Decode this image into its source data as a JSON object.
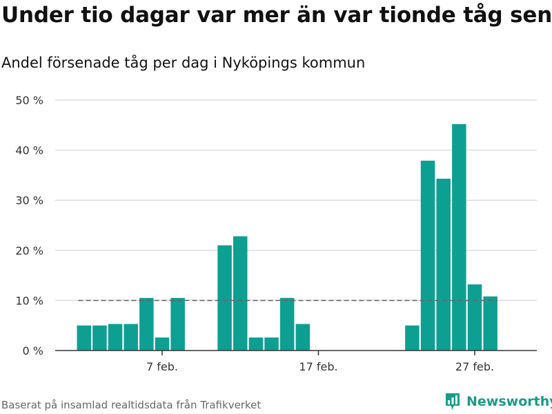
{
  "header": {
    "title": "Under tio dagar var mer än var tionde tåg sent",
    "subtitle": "Andel försenade tåg per dag i Nyköpings kommun"
  },
  "footer": {
    "source": "Baserat på insamlad realtidsdata från Trafikverket",
    "brand": "Newsworthy"
  },
  "colors": {
    "bar": "#0e9f93",
    "reference_line": "#666666",
    "grid": "#dddddd",
    "brand": "#1a9a8c"
  },
  "chart_data": {
    "type": "bar",
    "title": "Under tio dagar var mer än var tionde tåg sent",
    "subtitle": "Andel försenade tåg per dag i Nyköpings kommun",
    "x": [
      "2 feb.",
      "3 feb.",
      "4 feb.",
      "5 feb.",
      "6 feb.",
      "7 feb.",
      "8 feb.",
      "9 feb.",
      "10 feb.",
      "11 feb.",
      "12 feb.",
      "13 feb.",
      "14 feb.",
      "15 feb.",
      "16 feb.",
      "17 feb.",
      "18 feb.",
      "19 feb.",
      "20 feb.",
      "21 feb.",
      "22 feb.",
      "23 feb.",
      "24 feb.",
      "25 feb.",
      "26 feb.",
      "27 feb.",
      "28 feb."
    ],
    "values": [
      5.0,
      5.0,
      5.3,
      5.3,
      10.5,
      2.6,
      10.5,
      0,
      0,
      21.0,
      22.8,
      2.6,
      2.6,
      10.5,
      5.3,
      0,
      0,
      0,
      0,
      0,
      0,
      5.0,
      37.9,
      34.3,
      45.2,
      13.2,
      10.8
    ],
    "reference_line": {
      "value": 10,
      "style": "dashed"
    },
    "x_tick_labels": [
      "7 feb.",
      "17 feb.",
      "27 feb."
    ],
    "y_tick_labels": [
      "0 %",
      "10 %",
      "20 %",
      "30 %",
      "40 %",
      "50 %"
    ],
    "y_ticks": [
      0,
      10,
      20,
      30,
      40,
      50
    ],
    "ylim": [
      0,
      50
    ],
    "xlabel": "",
    "ylabel": "",
    "unit": "%",
    "grid": "horizontal"
  }
}
